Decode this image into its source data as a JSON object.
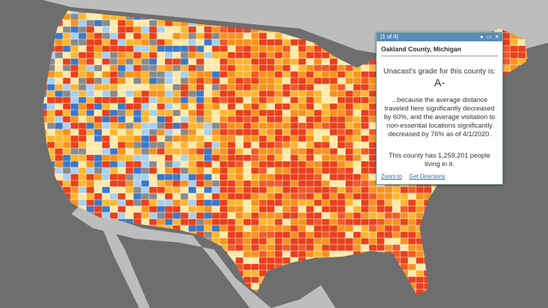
{
  "popup": {
    "pager": "(1 of 4)",
    "title": "Oakland County, Michigan",
    "grade_label": "Unacast's grade for this county is:",
    "grade": "A-",
    "description": "...because the average distance traveled here significantly decreased by 60%, and the average visitation to non-essential locations significantly decreased by 76% as of 4/1/2020.",
    "population_text": "This county has 1,259,201 people living in it.",
    "links": [
      "Zoom to",
      "Get Directions"
    ]
  }
}
